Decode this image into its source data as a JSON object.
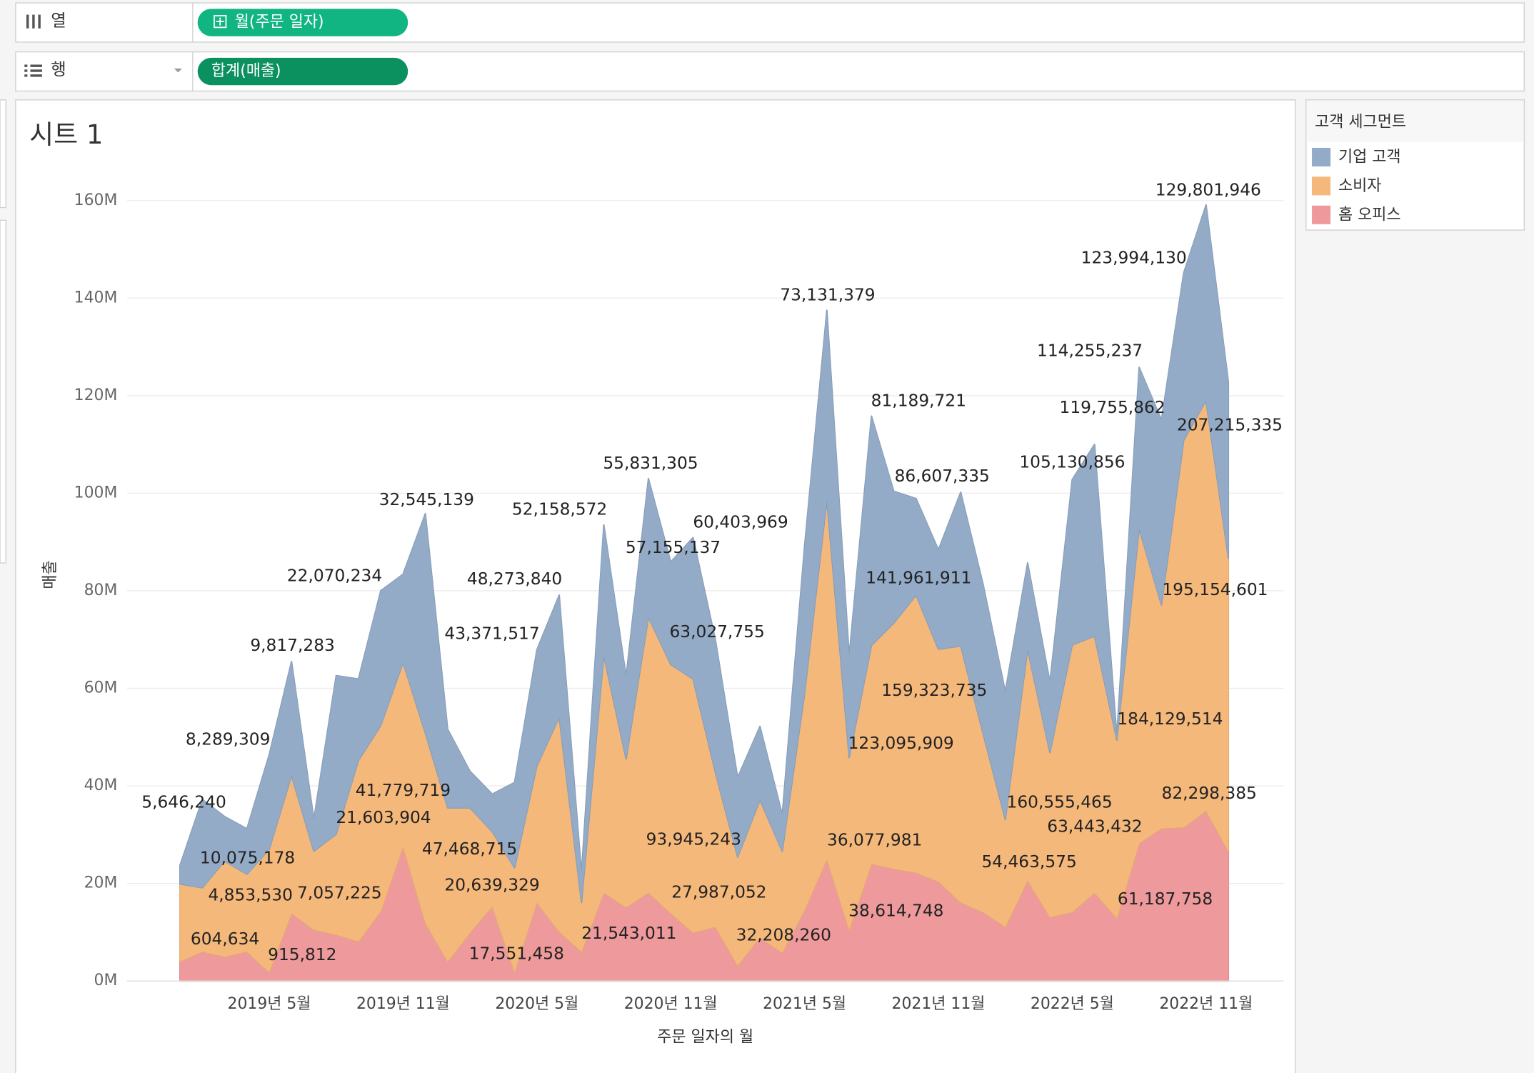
{
  "shelves": {
    "columns": {
      "label": "열",
      "pill": "월(주문 일자)"
    },
    "rows": {
      "label": "행",
      "pill": "합계(매출)"
    }
  },
  "sheet_title": "시트 1",
  "chart_data": {
    "type": "area",
    "stacked": true,
    "xlabel": "주문 일자의 월",
    "ylabel": "매출",
    "categories": [
      null,
      null,
      null,
      null,
      "2019년 5월",
      null,
      null,
      null,
      null,
      null,
      "2019년 11월",
      null,
      null,
      null,
      null,
      null,
      "2020년 5월",
      null,
      null,
      null,
      null,
      null,
      "2020년 11월",
      null,
      null,
      null,
      null,
      null,
      "2021년 5월",
      null,
      null,
      null,
      null,
      null,
      "2021년 11월",
      null,
      null,
      null,
      null,
      null,
      "2022년 5월",
      null,
      null,
      null,
      null,
      null,
      "2022년 11월",
      null
    ],
    "series": [
      {
        "name": "기업 고객",
        "color": "#93abc7",
        "values": [
          3.8,
          18.1,
          9.1,
          9.3,
          19.4,
          23.4,
          6.5,
          32.5,
          16.7,
          27.6,
          18.1,
          45.0,
          16.1,
          7.5,
          7.7,
          17.5,
          23.8,
          25.0,
          6.0,
          26.8,
          16.9,
          28.4,
          21.0,
          29.0,
          27.2,
          16.3,
          15.1,
          7.5,
          30.2,
          38.9,
          20.8,
          47.0,
          27.0,
          19.8,
          20.4,
          31.5,
          30.6,
          26.2,
          17.7,
          14.5,
          33.9,
          39.3,
          0.8,
          33.1,
          37.9,
          34.3,
          40.1,
          36.1
        ]
      },
      {
        "name": "소비자",
        "color": "#f5b87b",
        "values": [
          15.9,
          13.1,
          19.6,
          15.9,
          25.2,
          28.2,
          16.1,
          20.6,
          37.1,
          38.1,
          37.7,
          38.9,
          31.5,
          25.6,
          15.3,
          21.4,
          28.0,
          44.0,
          10.1,
          48.6,
          30.4,
          56.5,
          51.0,
          52.0,
          31.7,
          22.2,
          28.2,
          20.8,
          44.4,
          73.6,
          35.3,
          44.8,
          50.4,
          56.9,
          47.6,
          52.6,
          36.7,
          22.0,
          47.4,
          33.7,
          54.8,
          52.6,
          36.5,
          64.5,
          45.8,
          79.4,
          84.1,
          60.1
        ]
      },
      {
        "name": "홈 오피스",
        "color": "#ee9a9c",
        "values": [
          4.0,
          6.0,
          5.0,
          6.0,
          1.8,
          13.9,
          10.5,
          9.5,
          8.1,
          14.3,
          27.6,
          11.9,
          4.0,
          9.9,
          15.3,
          1.8,
          16.1,
          10.1,
          6.0,
          18.1,
          15.1,
          18.1,
          13.9,
          9.9,
          11.1,
          3.2,
          8.9,
          5.8,
          14.5,
          25.0,
          10.5,
          24.0,
          23.0,
          22.2,
          20.4,
          16.1,
          14.1,
          11.1,
          20.6,
          13.1,
          14.1,
          18.1,
          12.9,
          28.2,
          31.3,
          31.5,
          34.9,
          26.6
        ]
      }
    ],
    "ylim": [
      0,
      166
    ],
    "yticks": [
      {
        "value": 0,
        "label": "0M"
      },
      {
        "value": 20,
        "label": "20M"
      },
      {
        "value": 40,
        "label": "40M"
      },
      {
        "value": 60,
        "label": "60M"
      },
      {
        "value": 80,
        "label": "80M"
      },
      {
        "value": 100,
        "label": "100M"
      },
      {
        "value": 120,
        "label": "120M"
      },
      {
        "value": 140,
        "label": "140M"
      },
      {
        "value": 160,
        "label": "160M"
      }
    ],
    "grid": true,
    "legend": {
      "title": "고객 세그먼트",
      "position": "right"
    },
    "annotations": [
      "5,646,240",
      "8,289,309",
      "9,817,283",
      "22,070,234",
      "32,545,139",
      "48,273,840",
      "52,158,572",
      "55,831,305",
      "60,403,969",
      "57,155,137",
      "43,371,517",
      "63,027,755",
      "73,131,379",
      "81,189,721",
      "86,607,335",
      "141,961,911",
      "159,323,735",
      "123,095,909",
      "114,255,237",
      "119,755,862",
      "105,130,856",
      "123,994,130",
      "129,801,946",
      "207,215,335",
      "195,154,601",
      "184,129,514",
      "82,298,385",
      "160,555,465",
      "63,443,432",
      "54,463,575",
      "61,187,758",
      "36,077,981",
      "38,614,748",
      "32,208,260",
      "27,987,052",
      "93,945,243",
      "21,543,011",
      "17,551,458",
      "20,639,329",
      "47,468,715",
      "41,779,719",
      "21,603,904",
      "10,075,178",
      "4,853,530",
      "7,057,225",
      "604,634",
      "915,812"
    ]
  }
}
